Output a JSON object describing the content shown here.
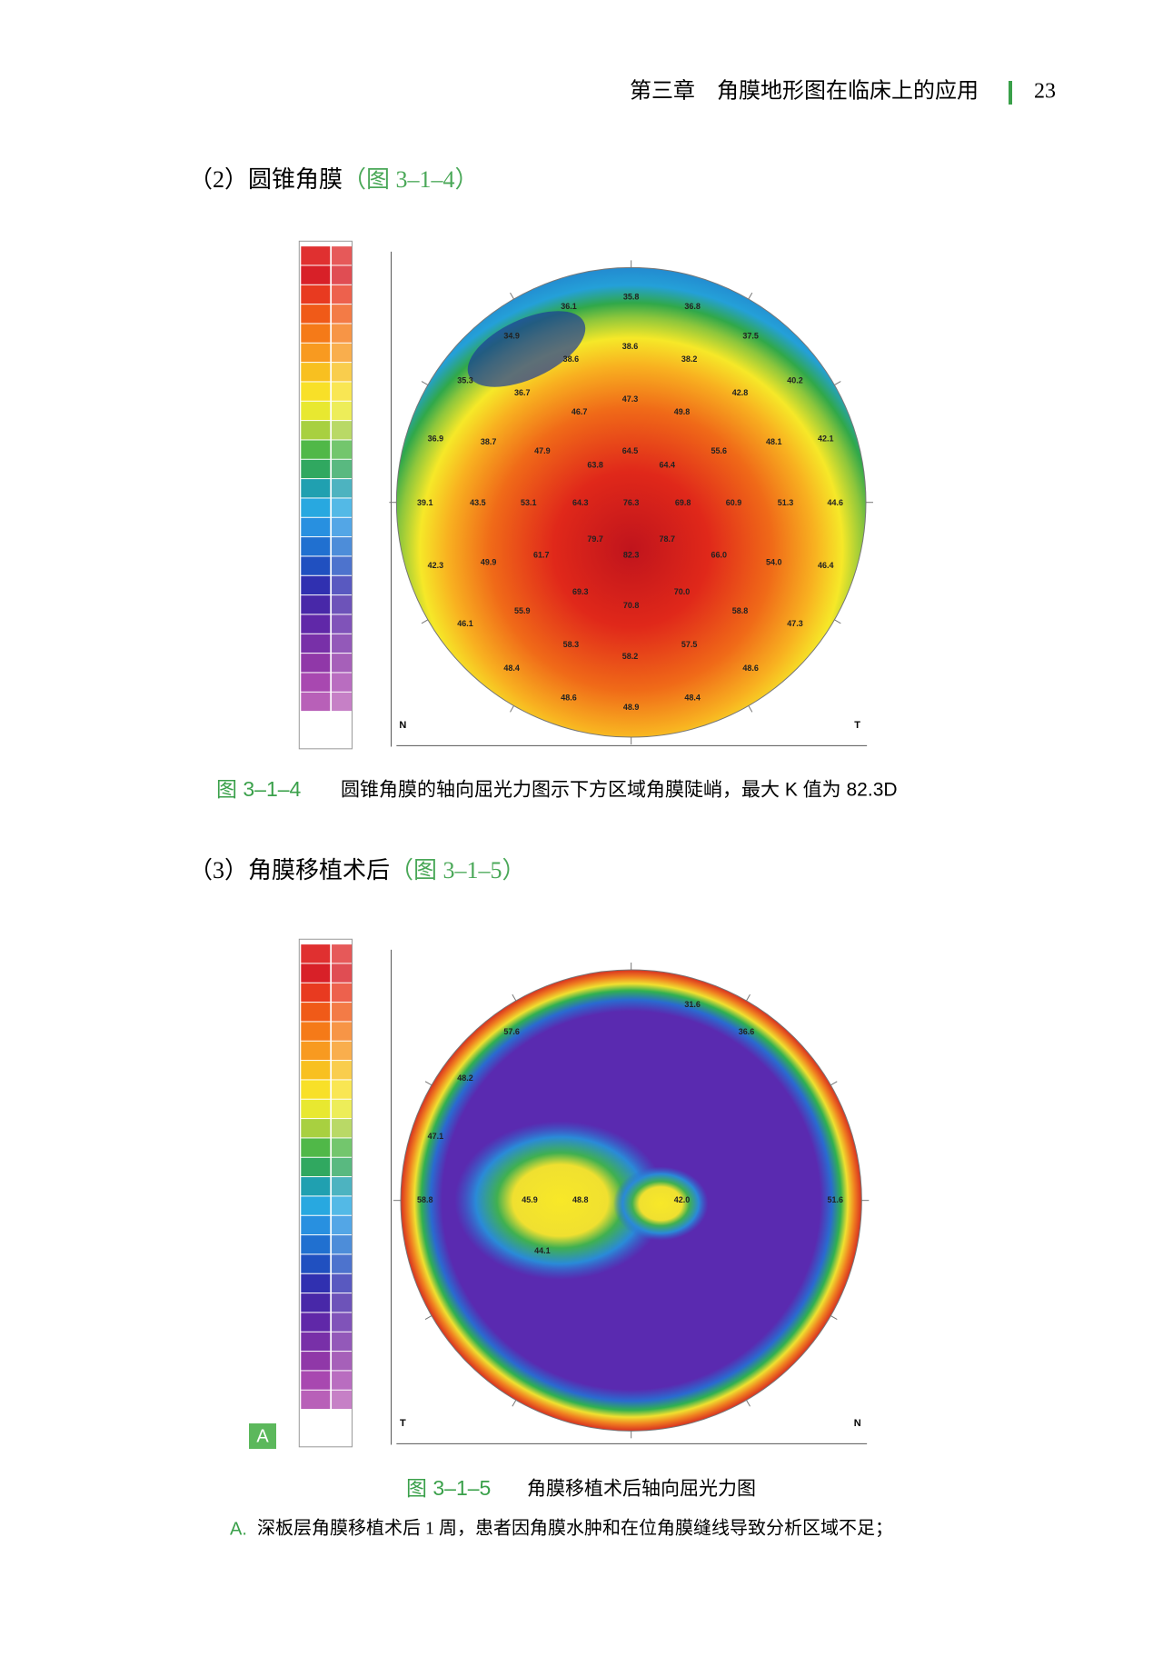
{
  "header": {
    "chapter": "第三章　角膜地形图在临床上的应用",
    "page": "23"
  },
  "sections": [
    {
      "label": "（2）圆锥角膜",
      "ref": "（图 3–1–4）"
    },
    {
      "label": "（3）角膜移植术后",
      "ref": "（图 3–1–5）"
    }
  ],
  "figures": [
    {
      "map_labels": [
        "36.1",
        "35.8",
        "36.8",
        "34.9",
        "37.5",
        "38.6",
        "38.6",
        "38.2",
        "35.3",
        "40.2",
        "36.7",
        "42.8",
        "47.3",
        "46.7",
        "49.8",
        "36.9",
        "38.7",
        "48.1",
        "42.1",
        "47.9",
        "64.5",
        "55.6",
        "63.8",
        "64.4",
        "39.1",
        "43.5",
        "53.1",
        "64.3",
        "76.3",
        "69.8",
        "60.9",
        "51.3",
        "44.6",
        "79.7",
        "78.7",
        "42.3",
        "49.9",
        "61.7",
        "82.3",
        "66.0",
        "54.0",
        "46.4",
        "69.3",
        "70.0",
        "70.8",
        "55.9",
        "58.8",
        "46.1",
        "47.3",
        "58.3",
        "57.5",
        "58.2",
        "48.4",
        "48.6",
        "48.6",
        "48.4",
        "48.9"
      ],
      "orientation": [
        "N",
        "T"
      ],
      "caption_number": "图 3–1–4",
      "caption_text": "圆锥角膜的轴向屈光力图示下方区域角膜陡峭，最大 K 值为 82.3D"
    },
    {
      "map_labels": [
        "57.6",
        "31.6",
        "36.6",
        "48.2",
        "47.1",
        "58.8",
        "45.9",
        "48.8",
        "42.0",
        "51.6",
        "44.1"
      ],
      "orientation": [
        "T",
        "N"
      ],
      "panel": "A",
      "caption_number": "图 3–1–5",
      "caption_text": "角膜移植术后轴向屈光力图",
      "subcaption_label": "A.",
      "subcaption_text": "深板层角膜移植术后 1 周，患者因角膜水肿和在位角膜缝线导致分析区域不足；"
    }
  ]
}
